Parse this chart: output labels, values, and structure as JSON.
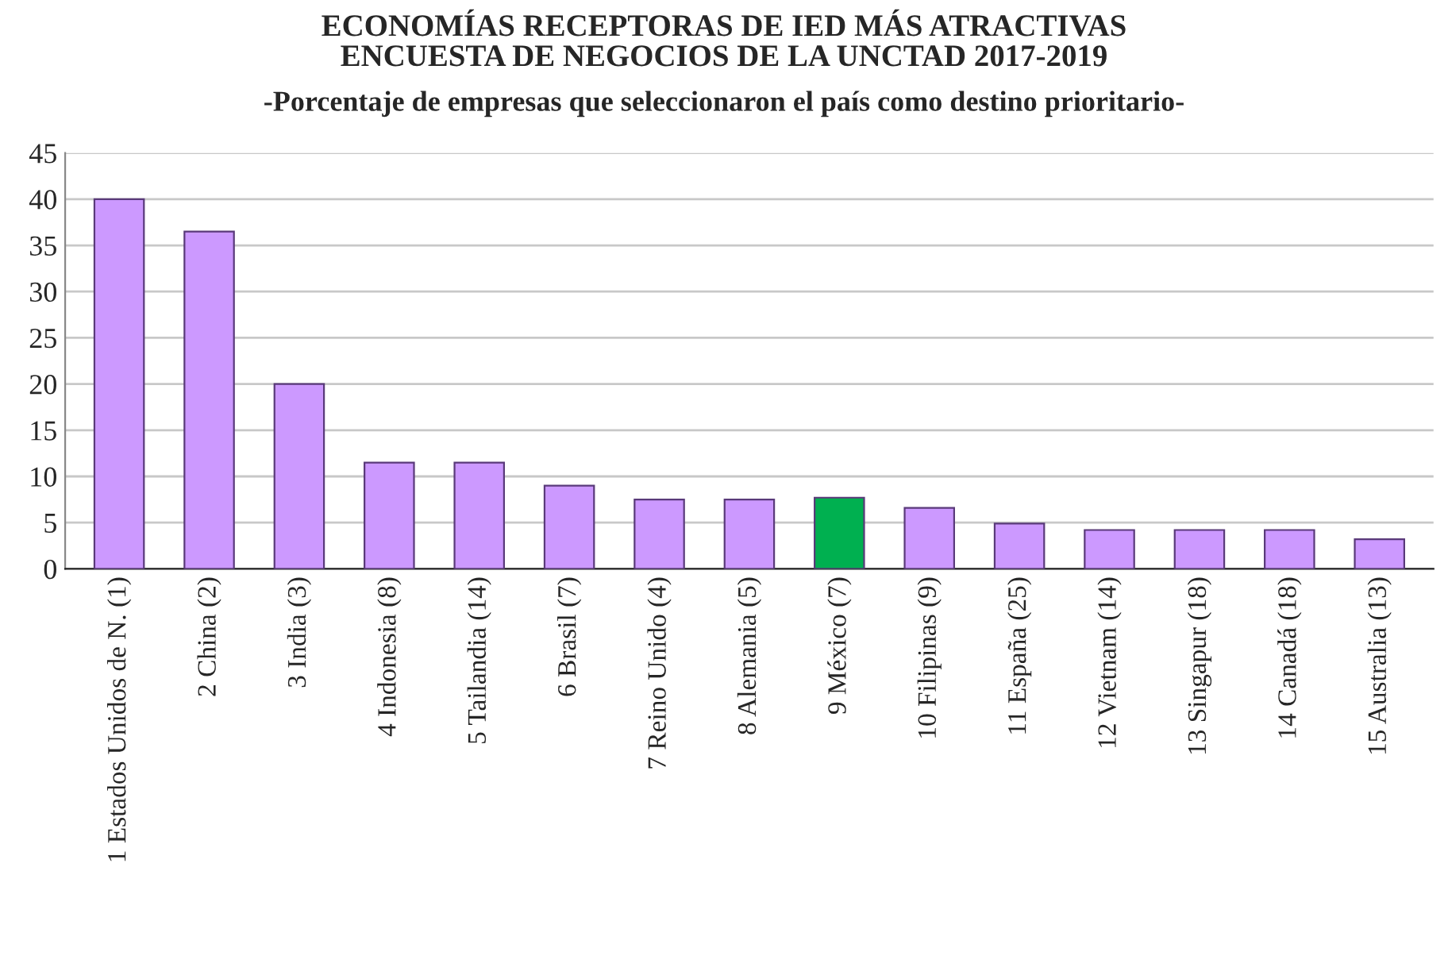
{
  "chart_data": {
    "type": "bar",
    "title": "ECONOMÍAS RECEPTORAS DE IED MÁS ATRACTIVAS\nENCUESTA DE NEGOCIOS DE LA UNCTAD 2017-2019",
    "subtitle": "-Porcentaje de empresas que seleccionaron el país como destino prioritario-",
    "categories": [
      "1 Estados Unidos de N. (1)",
      "2 China (2)",
      "3 India (3)",
      "4 Indonesia (8)",
      "5 Tailandia (14)",
      "6 Brasil (7)",
      "7 Reino Unido (4)",
      "8 Alemania (5)",
      "9 México (7)",
      "10 Filipinas (9)",
      "11 España (25)",
      "12 Vietnam (14)",
      "13 Singapur (18)",
      "14 Canadá (18)",
      "15 Australia (13)"
    ],
    "values": [
      40,
      36.5,
      20,
      11.5,
      11.5,
      9,
      7.5,
      7.5,
      7.7,
      6.6,
      4.9,
      4.2,
      4.2,
      4.2,
      3.2
    ],
    "colors": [
      "#cc99ff",
      "#cc99ff",
      "#cc99ff",
      "#cc99ff",
      "#cc99ff",
      "#cc99ff",
      "#cc99ff",
      "#cc99ff",
      "#00b050",
      "#cc99ff",
      "#cc99ff",
      "#cc99ff",
      "#cc99ff",
      "#cc99ff",
      "#cc99ff"
    ],
    "ylim": [
      0,
      45
    ],
    "yticks": [
      0,
      5,
      10,
      15,
      20,
      25,
      30,
      35,
      40,
      45
    ],
    "grid": "y"
  }
}
